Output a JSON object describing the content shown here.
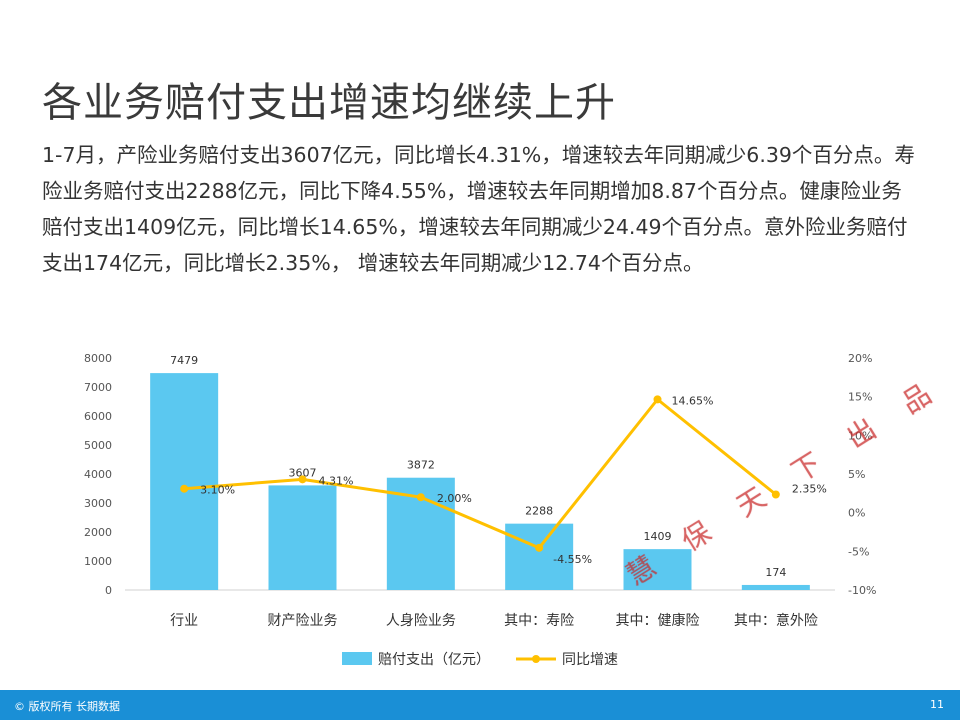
{
  "slide": {
    "title": "各业务赔付支出增速均继续上升",
    "body": "1-7月，产险业务赔付支出3607亿元，同比增长4.31%，增速较去年同期减少6.39个百分点。寿险业务赔付支出2288亿元，同比下降4.55%，增速较去年同期增加8.87个百分点。健康险业务赔付支出1409亿元，同比增长14.65%，增速较去年同期减少24.49个百分点。意外险业务赔付支出174亿元，同比增长2.35%， 增速较去年同期减少12.74个百分点。",
    "watermark": "慧 保 天 下 出 品",
    "footer": {
      "copyright": "© 版权所有 长期数据",
      "page_number": "11"
    }
  },
  "chart_data": {
    "type": "bar",
    "categories": [
      "行业",
      "财产险业务",
      "人身险业务",
      "其中：寿险",
      "其中：健康险",
      "其中：意外险"
    ],
    "series": [
      {
        "name": "赔付支出（亿元）",
        "type": "bar",
        "axis": "left",
        "values": [
          7479,
          3607,
          3872,
          2288,
          1409,
          174
        ],
        "labels": [
          "7479",
          "3607",
          "3872",
          "2288",
          "1409",
          "174"
        ],
        "color": "#5bc8f0"
      },
      {
        "name": "同比增速",
        "type": "line",
        "axis": "right",
        "values": [
          3.1,
          4.31,
          2.0,
          -4.55,
          14.65,
          2.35
        ],
        "labels": [
          "3.10%",
          "4.31%",
          "2.00%",
          "-4.55%",
          "14.65%",
          "2.35%"
        ],
        "color": "#ffc000"
      }
    ],
    "y_left": {
      "min": 0,
      "max": 8000,
      "ticks": [
        "0",
        "1000",
        "2000",
        "3000",
        "4000",
        "5000",
        "6000",
        "7000",
        "8000"
      ]
    },
    "y_right": {
      "min": -10,
      "max": 20,
      "ticks": [
        "-10%",
        "-5%",
        "0%",
        "5%",
        "10%",
        "15%",
        "20%"
      ]
    },
    "legend": {
      "placement": "bottom"
    },
    "grid": false
  }
}
